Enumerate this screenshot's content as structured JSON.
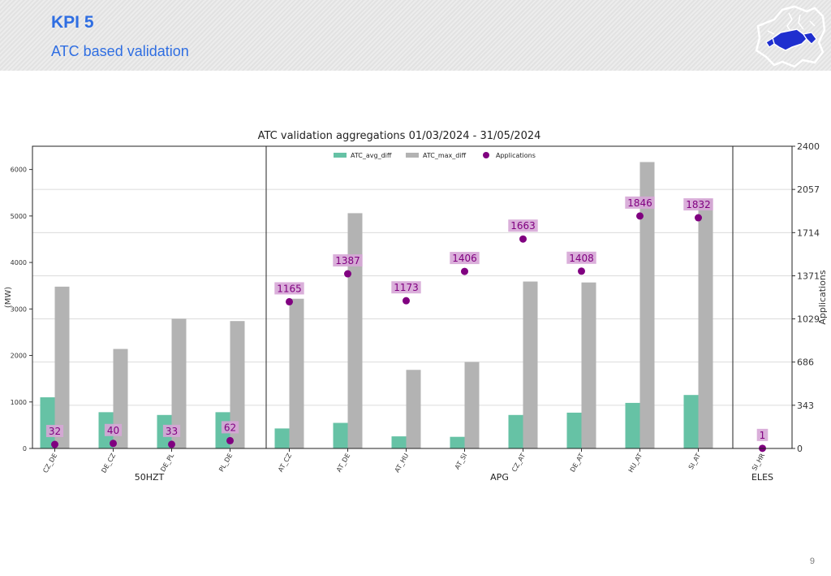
{
  "header": {
    "title": "KPI 5",
    "subtitle": "ATC based validation"
  },
  "page_number": "9",
  "logo": {
    "icon": "europe-map-logo",
    "colors": [
      "#1f2fcf",
      "#ffffff"
    ]
  },
  "colors": {
    "avg": "#66c2a5",
    "max": "#b3b3b3",
    "applications": "#800080",
    "label_box": "#d6a6d6",
    "title_text": "#2f6ee2"
  },
  "chart_data": {
    "type": "bar",
    "title": "ATC validation aggregations 01/03/2024 - 31/05/2024",
    "ylabel": "(MW)",
    "y2label": "Applications",
    "ylim": [
      0,
      6500
    ],
    "y_ticks": [
      0,
      1000,
      2000,
      3000,
      4000,
      5000,
      6000
    ],
    "y2lim": [
      0,
      2400
    ],
    "y2_ticks": [
      0,
      343,
      686,
      1029,
      1371,
      1714,
      2057,
      2400
    ],
    "grid": true,
    "legend": {
      "position": "top-center",
      "entries": [
        {
          "label": "ATC_avg_diff",
          "kind": "bar",
          "color": "#66c2a5"
        },
        {
          "label": "ATC_max_diff",
          "kind": "bar",
          "color": "#b3b3b3"
        },
        {
          "label": "Applications",
          "kind": "marker",
          "color": "#800080"
        }
      ]
    },
    "groups": [
      {
        "name": "50HZT",
        "categories": [
          "CZ_DE",
          "DE_CZ",
          "DE_PL",
          "PL_DE"
        ],
        "ATC_avg_diff": [
          1100,
          780,
          720,
          780
        ],
        "ATC_max_diff": [
          3480,
          2140,
          2790,
          2740
        ],
        "Applications": [
          32,
          40,
          33,
          62
        ]
      },
      {
        "name": "APG",
        "categories": [
          "AT_CZ",
          "AT_DE",
          "AT_HU",
          "AT_SI",
          "CZ_AT",
          "DE_AT",
          "HU_AT",
          "SI_AT"
        ],
        "ATC_avg_diff": [
          430,
          550,
          260,
          250,
          720,
          770,
          980,
          1150
        ],
        "ATC_max_diff": [
          3220,
          5060,
          1690,
          1860,
          3590,
          3570,
          6160,
          5360
        ],
        "Applications": [
          1165,
          1387,
          1173,
          1406,
          1663,
          1408,
          1846,
          1832
        ]
      },
      {
        "name": "ELES",
        "categories": [
          "SI_HR"
        ],
        "ATC_avg_diff": [
          0
        ],
        "ATC_max_diff": [
          0
        ],
        "Applications": [
          1
        ]
      }
    ]
  }
}
